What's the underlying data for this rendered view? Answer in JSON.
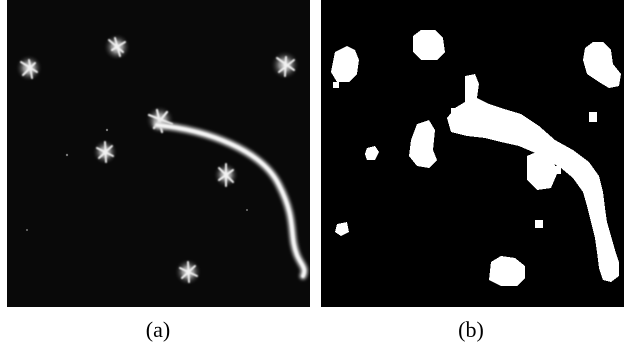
{
  "figure": {
    "panels": [
      {
        "caption": "(a)",
        "kind": "grayscale fluorescence microscopy image of bright spots and a curved filament"
      },
      {
        "caption": "(b)",
        "kind": "binary segmentation mask of the same image"
      }
    ],
    "colors": {
      "background": "#ffffff",
      "panel_background": "#000000",
      "signal": "#ffffff"
    }
  }
}
